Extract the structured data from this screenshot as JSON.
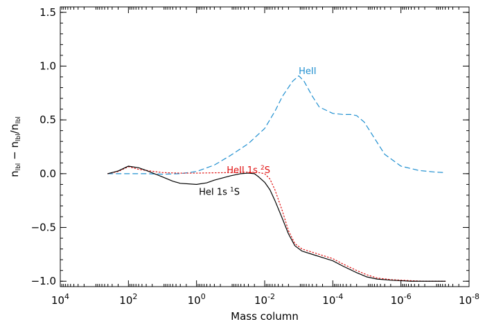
{
  "chart_data": {
    "type": "line",
    "xlabel": "Mass column",
    "ylabel": {
      "base": "n",
      "sub1": "lbl",
      "mid": " − n",
      "sub2": "lbl",
      "slash": "/n",
      "sub3": "lbl"
    },
    "x_scale": "log",
    "x_reversed": true,
    "xlim": [
      10000,
      1e-08
    ],
    "ylim": [
      -1.05,
      1.55
    ],
    "x_ticks": [
      {
        "value": 10000,
        "mant": "10",
        "exp": "4"
      },
      {
        "value": 100,
        "mant": "10",
        "exp": "2"
      },
      {
        "value": 1,
        "mant": "10",
        "exp": "0"
      },
      {
        "value": 0.01,
        "mant": "10",
        "exp": "-2"
      },
      {
        "value": 0.0001,
        "mant": "10",
        "exp": "-4"
      },
      {
        "value": 1e-06,
        "mant": "10",
        "exp": "-6"
      },
      {
        "value": 1e-08,
        "mant": "10",
        "exp": "-8"
      }
    ],
    "y_ticks": [
      {
        "value": -1.0,
        "label": "−1.0"
      },
      {
        "value": -0.5,
        "label": "−0.5"
      },
      {
        "value": 0.0,
        "label": "0.0"
      },
      {
        "value": 0.5,
        "label": "0.5"
      },
      {
        "value": 1.0,
        "label": "1.0"
      },
      {
        "value": 1.5,
        "label": "1.5"
      }
    ],
    "series": [
      {
        "name": "HeII",
        "label": "HeII",
        "color": "#1f8fd0",
        "dash": "dashed",
        "x": [
          400,
          100,
          30,
          10,
          3,
          1,
          0.3,
          0.1,
          0.03,
          0.01,
          0.005,
          0.003,
          0.0015,
          0.001,
          0.0007,
          0.0004,
          0.00025,
          0.0001,
          5e-05,
          3e-05,
          2e-05,
          1.2e-05,
          6e-06,
          3e-06,
          1e-06,
          3e-07,
          1e-07,
          5e-08
        ],
        "y": [
          0.0,
          0.0,
          0.0,
          -0.005,
          0.0,
          0.02,
          0.08,
          0.17,
          0.28,
          0.42,
          0.58,
          0.72,
          0.86,
          0.91,
          0.86,
          0.72,
          0.62,
          0.56,
          0.55,
          0.55,
          0.54,
          0.48,
          0.33,
          0.18,
          0.07,
          0.03,
          0.015,
          0.01
        ]
      },
      {
        "name": "HeII 1s 2S",
        "label_main": "HeII 1s ",
        "label_sup": "2",
        "label_end": "S",
        "color": "#e01010",
        "dash": "dotted",
        "x": [
          400,
          200,
          100,
          50,
          30,
          10,
          3,
          1,
          0.3,
          0.1,
          0.03,
          0.015,
          0.01,
          0.007,
          0.005,
          0.003,
          0.002,
          0.0013,
          0.0008,
          0.0004,
          0.0002,
          0.0001,
          5e-05,
          2e-05,
          1e-05,
          5e-06,
          2e-06,
          1e-06,
          5e-07,
          2e-07,
          5e-08
        ],
        "y": [
          0.0,
          0.02,
          0.065,
          0.04,
          0.03,
          0.01,
          0.005,
          0.005,
          0.008,
          0.01,
          0.015,
          0.01,
          0.0,
          -0.05,
          -0.15,
          -0.35,
          -0.53,
          -0.65,
          -0.7,
          -0.73,
          -0.76,
          -0.79,
          -0.84,
          -0.9,
          -0.94,
          -0.97,
          -0.985,
          -0.99,
          -0.995,
          -1.0,
          -1.0
        ]
      },
      {
        "name": "HeI 1s 1S",
        "label_main": "HeI 1s ",
        "label_sup": "1",
        "label_end": "S",
        "color": "#000000",
        "dash": "solid",
        "x": [
          400,
          200,
          100,
          50,
          30,
          10,
          5,
          3,
          1,
          0.5,
          0.3,
          0.1,
          0.05,
          0.03,
          0.02,
          0.015,
          0.01,
          0.007,
          0.005,
          0.003,
          0.002,
          0.0013,
          0.0008,
          0.0004,
          0.0002,
          0.0001,
          5e-05,
          2e-05,
          1e-05,
          5e-06,
          2e-06,
          1e-06,
          5e-07,
          2e-07,
          5e-08
        ],
        "y": [
          0.0,
          0.025,
          0.07,
          0.055,
          0.03,
          -0.03,
          -0.07,
          -0.09,
          -0.1,
          -0.085,
          -0.06,
          -0.02,
          0.0,
          0.005,
          0.0,
          -0.03,
          -0.08,
          -0.15,
          -0.25,
          -0.42,
          -0.56,
          -0.67,
          -0.72,
          -0.75,
          -0.78,
          -0.81,
          -0.86,
          -0.92,
          -0.96,
          -0.98,
          -0.99,
          -0.995,
          -1.0,
          -1.0,
          -1.0
        ]
      }
    ],
    "annotations": [
      {
        "series": 0,
        "text": "HeII",
        "x": 0.001,
        "y": 0.95
      },
      {
        "series": 1,
        "text": "HeII 1s 2S",
        "x": 0.13,
        "y": 0.03
      },
      {
        "series": 2,
        "text": "HeI 1s 1S",
        "x": 0.85,
        "y": -0.17
      }
    ],
    "grid": false,
    "legend": "none"
  }
}
